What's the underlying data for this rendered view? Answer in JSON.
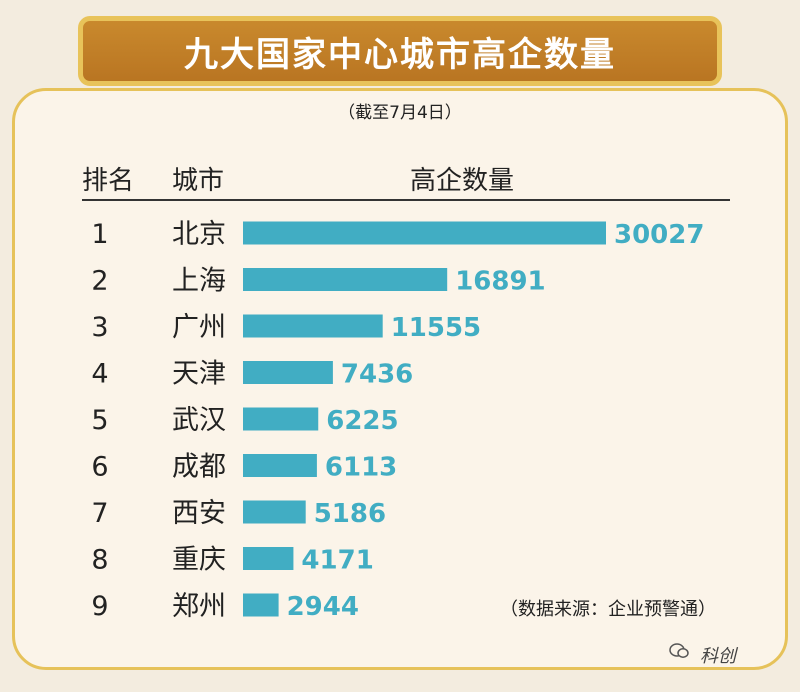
{
  "title": "九大国家中心城市高企数量",
  "subtitle": "（截至7月4日）",
  "headers": {
    "rank": "排名",
    "city": "城市",
    "count": "高企数量"
  },
  "source": "（数据来源：企业预警通）",
  "watermark": "科创",
  "colors": {
    "bar": "#41adc3",
    "value": "#41adc3",
    "banner": "#c0802a",
    "border": "#e6c25a"
  },
  "chart_data": {
    "type": "bar",
    "orientation": "horizontal",
    "ranks": [
      "1",
      "2",
      "3",
      "4",
      "5",
      "6",
      "7",
      "8",
      "9"
    ],
    "categories": [
      "北京",
      "上海",
      "广州",
      "天津",
      "武汉",
      "成都",
      "西安",
      "重庆",
      "郑州"
    ],
    "values": [
      30027,
      16891,
      11555,
      7436,
      6225,
      6113,
      5186,
      4171,
      2944
    ],
    "data_labels": [
      "30027",
      "16891",
      "11555",
      "7436",
      "6225",
      "6113",
      "5186",
      "4171",
      "2944"
    ],
    "title": "九大国家中心城市高企数量",
    "xlabel": "高企数量",
    "ylabel": "城市",
    "grid": false,
    "legend": false
  }
}
